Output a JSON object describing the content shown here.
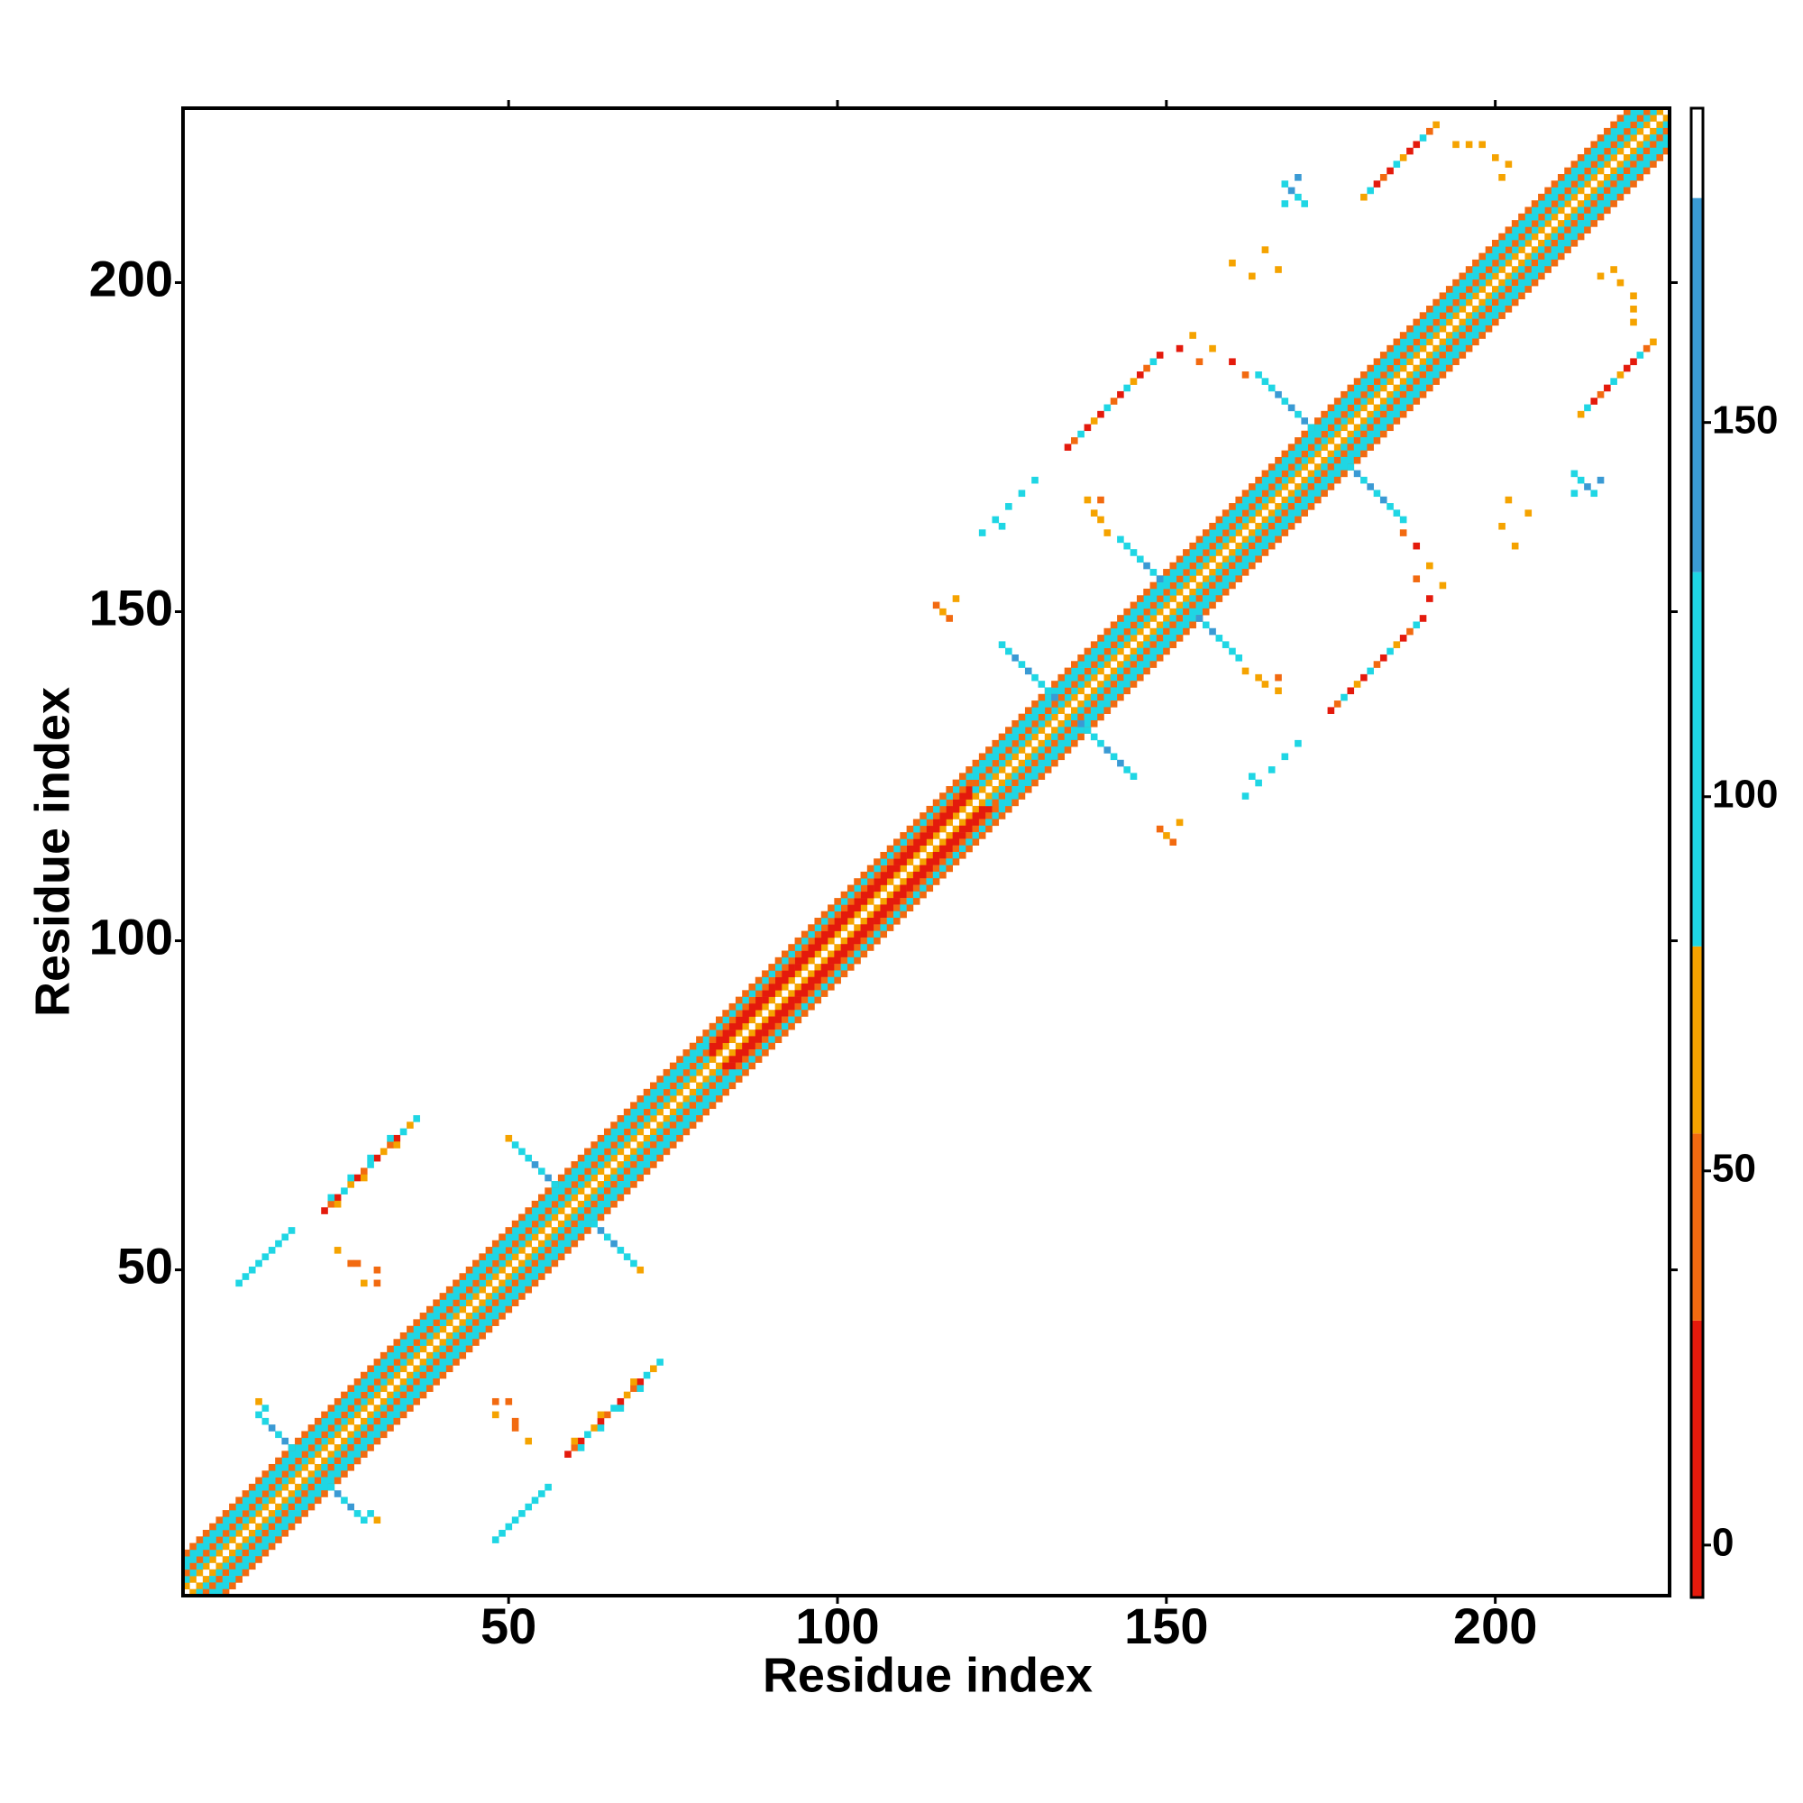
{
  "chart_data": {
    "type": "heatmap",
    "x_label": "Residue index",
    "y_label": "Residue index",
    "xlim": [
      0.5,
      226.5
    ],
    "ylim": [
      0.5,
      226.5
    ],
    "xticks": [
      50,
      100,
      150,
      200
    ],
    "yticks": [
      50,
      100,
      150,
      200
    ],
    "colorbar": {
      "lim": [
        -7,
        192
      ],
      "bounds": [
        -7,
        30,
        55,
        80,
        130,
        180,
        192
      ],
      "colors": [
        "#e41a0c",
        "#f26a10",
        "#f5a300",
        "#1fd6e4",
        "#3a9ad4",
        "#ffffff"
      ],
      "ticks": [
        0,
        50,
        100,
        150
      ]
    },
    "band": [
      {
        "start": 1,
        "end": 80,
        "values": [
          60,
          100,
          45,
          100,
          110,
          40
        ]
      },
      {
        "start": 81,
        "end": 120,
        "values": [
          60,
          25,
          15,
          40,
          100,
          30
        ]
      },
      {
        "start": 121,
        "end": 226,
        "values": [
          65,
          100,
          40,
          105,
          95,
          35
        ]
      }
    ],
    "cells": [
      [
        22,
        59,
        20
      ],
      [
        23,
        60,
        45
      ],
      [
        24,
        61,
        10
      ],
      [
        25,
        62,
        100
      ],
      [
        26,
        63,
        65
      ],
      [
        27,
        64,
        20
      ],
      [
        28,
        65,
        45
      ],
      [
        29,
        66,
        100
      ],
      [
        30,
        67,
        10
      ],
      [
        31,
        68,
        65
      ],
      [
        32,
        69,
        45
      ],
      [
        33,
        70,
        20
      ],
      [
        34,
        71,
        100
      ],
      [
        35,
        72,
        65
      ],
      [
        36,
        73,
        100
      ],
      [
        23,
        61,
        100
      ],
      [
        26,
        64,
        100
      ],
      [
        29,
        67,
        100
      ],
      [
        32,
        70,
        100
      ],
      [
        24,
        60,
        60
      ],
      [
        28,
        64,
        60
      ],
      [
        33,
        69,
        60
      ],
      [
        9,
        48,
        100
      ],
      [
        10,
        49,
        100
      ],
      [
        11,
        50,
        105
      ],
      [
        12,
        51,
        100
      ],
      [
        13,
        52,
        100
      ],
      [
        14,
        53,
        100
      ],
      [
        15,
        54,
        110
      ],
      [
        16,
        55,
        100
      ],
      [
        17,
        56,
        100
      ],
      [
        24,
        53,
        60
      ],
      [
        26,
        51,
        50
      ],
      [
        27,
        51,
        40
      ],
      [
        28,
        48,
        65
      ],
      [
        30,
        48,
        50
      ],
      [
        30,
        50,
        45
      ],
      [
        12,
        28,
        110
      ],
      [
        13,
        27,
        100
      ],
      [
        14,
        26,
        140
      ],
      [
        15,
        25,
        100
      ],
      [
        16,
        24,
        130
      ],
      [
        17,
        23,
        100
      ],
      [
        18,
        22,
        110
      ],
      [
        12,
        30,
        60
      ],
      [
        13,
        29,
        100
      ],
      [
        50,
        70,
        70
      ],
      [
        51,
        69,
        100
      ],
      [
        52,
        68,
        105
      ],
      [
        53,
        67,
        100
      ],
      [
        54,
        66,
        140
      ],
      [
        55,
        65,
        100
      ],
      [
        56,
        64,
        130
      ],
      [
        57,
        63,
        100
      ],
      [
        58,
        62,
        110
      ],
      [
        125,
        145,
        100
      ],
      [
        126,
        144,
        105
      ],
      [
        127,
        143,
        140
      ],
      [
        128,
        142,
        100
      ],
      [
        129,
        141,
        130
      ],
      [
        130,
        140,
        100
      ],
      [
        131,
        139,
        110
      ],
      [
        132,
        138,
        100
      ],
      [
        133,
        137,
        140
      ],
      [
        143,
        161,
        100
      ],
      [
        144,
        160,
        100
      ],
      [
        145,
        159,
        110
      ],
      [
        146,
        158,
        100
      ],
      [
        147,
        157,
        140
      ],
      [
        148,
        156,
        100
      ],
      [
        149,
        155,
        130
      ],
      [
        150,
        154,
        100
      ],
      [
        164,
        186,
        100
      ],
      [
        165,
        185,
        100
      ],
      [
        166,
        184,
        110
      ],
      [
        167,
        183,
        140
      ],
      [
        168,
        182,
        100
      ],
      [
        169,
        181,
        130
      ],
      [
        170,
        180,
        100
      ],
      [
        171,
        179,
        140
      ],
      [
        172,
        178,
        100
      ],
      [
        173,
        177,
        110
      ],
      [
        180,
        213,
        60
      ],
      [
        181,
        214,
        100
      ],
      [
        182,
        215,
        20
      ],
      [
        183,
        216,
        45
      ],
      [
        184,
        217,
        10
      ],
      [
        185,
        218,
        100
      ],
      [
        186,
        219,
        65
      ],
      [
        187,
        220,
        20
      ],
      [
        188,
        221,
        10
      ],
      [
        189,
        222,
        100
      ],
      [
        190,
        223,
        45
      ],
      [
        191,
        224,
        60
      ],
      [
        135,
        175,
        10
      ],
      [
        136,
        176,
        45
      ],
      [
        137,
        177,
        100
      ],
      [
        138,
        178,
        20
      ],
      [
        139,
        179,
        65
      ],
      [
        140,
        180,
        10
      ],
      [
        141,
        181,
        100
      ],
      [
        142,
        182,
        45
      ],
      [
        143,
        183,
        20
      ],
      [
        144,
        184,
        100
      ],
      [
        145,
        185,
        65
      ],
      [
        146,
        186,
        10
      ],
      [
        147,
        187,
        45
      ],
      [
        148,
        188,
        100
      ],
      [
        149,
        189,
        20
      ],
      [
        168,
        212,
        100
      ],
      [
        168,
        215,
        100
      ],
      [
        169,
        214,
        140
      ],
      [
        170,
        213,
        100
      ],
      [
        170,
        216,
        150
      ],
      [
        171,
        212,
        100
      ],
      [
        194,
        221,
        70
      ],
      [
        196,
        221,
        65
      ],
      [
        198,
        221,
        70
      ],
      [
        200,
        219,
        65
      ],
      [
        201,
        216,
        70
      ],
      [
        202,
        218,
        65
      ],
      [
        138,
        167,
        55
      ],
      [
        140,
        167,
        45
      ],
      [
        140,
        164,
        65
      ],
      [
        141,
        162,
        60
      ],
      [
        139,
        165,
        70
      ],
      [
        152,
        190,
        20
      ],
      [
        155,
        188,
        45
      ],
      [
        157,
        190,
        65
      ],
      [
        160,
        188,
        20
      ],
      [
        162,
        186,
        45
      ],
      [
        154,
        192,
        70
      ],
      [
        122,
        162,
        100
      ],
      [
        124,
        164,
        100
      ],
      [
        126,
        166,
        105
      ],
      [
        128,
        168,
        100
      ],
      [
        130,
        170,
        100
      ],
      [
        125,
        163,
        100
      ],
      [
        115,
        151,
        50
      ],
      [
        117,
        149,
        45
      ],
      [
        118,
        152,
        55
      ],
      [
        116,
        150,
        60
      ],
      [
        160,
        203,
        70
      ],
      [
        163,
        201,
        65
      ],
      [
        165,
        205,
        60
      ],
      [
        167,
        202,
        70
      ]
    ]
  }
}
